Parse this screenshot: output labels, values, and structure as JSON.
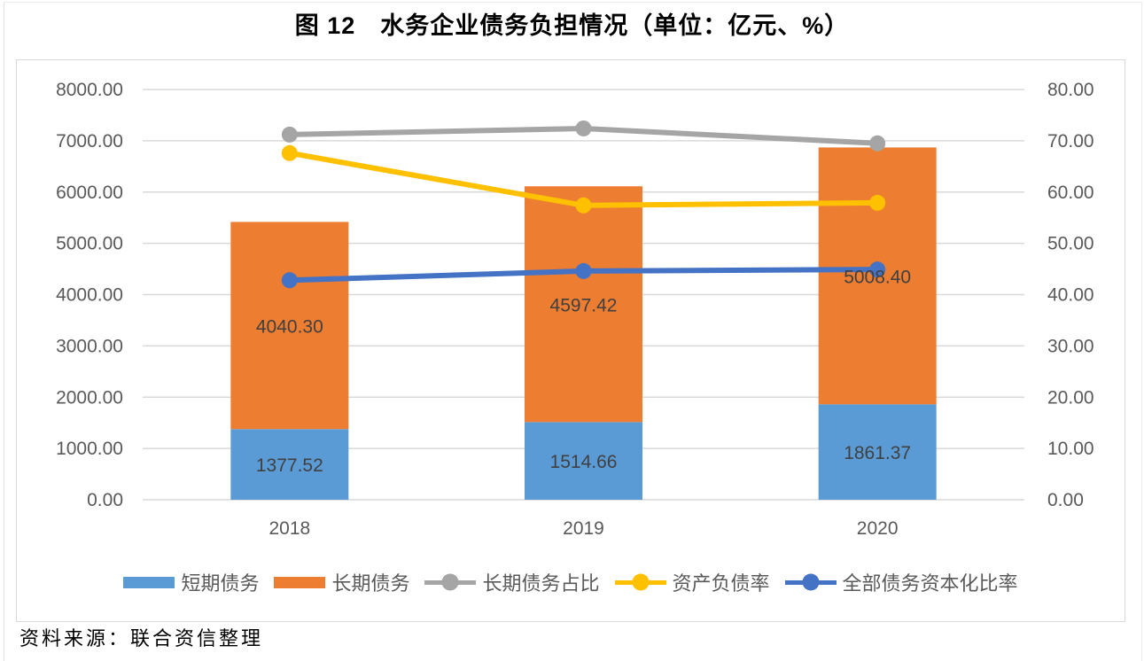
{
  "title": "图 12　水务企业债务负担情况（单位：亿元、%）",
  "source_note": "资料来源：联合资信整理",
  "colors": {
    "short_term_bar": "#5B9BD5",
    "long_term_bar": "#ED7D31",
    "long_term_ratio_line": "#A5A5A5",
    "asset_liability_line": "#FFC000",
    "debt_capitalization_line": "#4472C4",
    "gridline": "#d9d9d9",
    "axis_text": "#595959",
    "data_label_text": "#404040",
    "legend_text": "#595959"
  },
  "chart_data": {
    "type": "bar",
    "subtype": "stacked-bar-with-lines-combo",
    "title": "图 12　水务企业债务负担情况（单位：亿元、%）",
    "categories": [
      "2018",
      "2019",
      "2020"
    ],
    "bar_series": [
      {
        "name": "短期债务",
        "values": [
          1377.52,
          1514.66,
          1861.37
        ],
        "labels": [
          "1377.52",
          "1514.66",
          "1861.37"
        ],
        "color": "#5B9BD5",
        "axis": "left"
      },
      {
        "name": "长期债务",
        "values": [
          4040.3,
          4597.42,
          5008.4
        ],
        "labels": [
          "4040.30",
          "4597.42",
          "5008.40"
        ],
        "color": "#ED7D31",
        "axis": "left"
      }
    ],
    "line_series": [
      {
        "name": "长期债务占比",
        "values": [
          71.2,
          72.4,
          69.5
        ],
        "color": "#A5A5A5",
        "axis": "right"
      },
      {
        "name": "资产负债率",
        "values": [
          67.6,
          57.4,
          57.9
        ],
        "color": "#FFC000",
        "axis": "right"
      },
      {
        "name": "全部债务资本化比率",
        "values": [
          42.8,
          44.6,
          44.9
        ],
        "color": "#4472C4",
        "axis": "right"
      }
    ],
    "left_axis": {
      "min": 0,
      "max": 8000,
      "step": 1000,
      "tick_labels": [
        "0.00",
        "1000.00",
        "2000.00",
        "3000.00",
        "4000.00",
        "5000.00",
        "6000.00",
        "7000.00",
        "8000.00"
      ]
    },
    "right_axis": {
      "min": 0,
      "max": 80,
      "step": 10,
      "tick_labels": [
        "0.00",
        "10.00",
        "20.00",
        "30.00",
        "40.00",
        "50.00",
        "60.00",
        "70.00",
        "80.00"
      ]
    },
    "stacked": true,
    "grid": true,
    "legend_position": "bottom",
    "legend_entries": [
      "短期债务",
      "长期债务",
      "长期债务占比",
      "资产负债率",
      "全部债务资本化比率"
    ]
  }
}
